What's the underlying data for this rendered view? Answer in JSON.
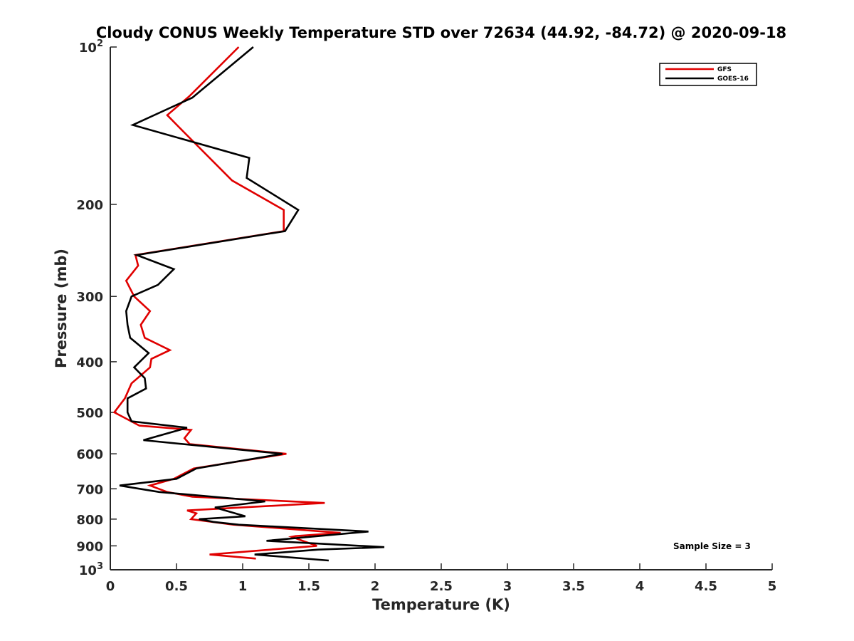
{
  "chart_data": {
    "type": "line",
    "title": "Cloudy CONUS Weekly Temperature STD over 72634 (44.92, -84.72) @ 2020-09-18",
    "xlabel": "Temperature (K)",
    "ylabel": "Pressure (mb)",
    "xlim": [
      0,
      5
    ],
    "ylim": [
      100,
      1000
    ],
    "y_scale": "log",
    "y_reversed": true,
    "x_ticks": [
      "0",
      "0.5",
      "1",
      "1.5",
      "2",
      "2.5",
      "3",
      "3.5",
      "4",
      "4.5",
      "5"
    ],
    "y_ticks": [
      {
        "value": 100,
        "base": "10",
        "exp": "2"
      },
      {
        "value": 200,
        "label": "200"
      },
      {
        "value": 300,
        "label": "300"
      },
      {
        "value": 400,
        "label": "400"
      },
      {
        "value": 500,
        "label": "500"
      },
      {
        "value": 600,
        "label": "600"
      },
      {
        "value": 700,
        "label": "700"
      },
      {
        "value": 800,
        "label": "800"
      },
      {
        "value": 900,
        "label": "900"
      },
      {
        "value": 1000,
        "base": "10",
        "exp": "3"
      }
    ],
    "grid": false,
    "legend": {
      "placement": "top-right",
      "entries": [
        "GFS",
        "GOES-16"
      ]
    },
    "annotation": "Sample Size = 3",
    "series": [
      {
        "name": "GFS",
        "color": "#e00000",
        "points": [
          [
            0.97,
            100
          ],
          [
            0.6,
            124
          ],
          [
            0.43,
            135
          ],
          [
            0.55,
            145
          ],
          [
            0.92,
            180
          ],
          [
            1.31,
            205
          ],
          [
            1.31,
            225
          ],
          [
            0.19,
            250
          ],
          [
            0.21,
            262
          ],
          [
            0.12,
            280
          ],
          [
            0.18,
            300
          ],
          [
            0.3,
            320
          ],
          [
            0.23,
            340
          ],
          [
            0.26,
            360
          ],
          [
            0.45,
            380
          ],
          [
            0.31,
            395
          ],
          [
            0.3,
            410
          ],
          [
            0.16,
            440
          ],
          [
            0.11,
            470
          ],
          [
            0.03,
            500
          ],
          [
            0.22,
            530
          ],
          [
            0.61,
            540
          ],
          [
            0.56,
            560
          ],
          [
            0.6,
            575
          ],
          [
            1.33,
            600
          ],
          [
            0.63,
            640
          ],
          [
            0.48,
            670
          ],
          [
            0.3,
            690
          ],
          [
            0.43,
            710
          ],
          [
            0.62,
            725
          ],
          [
            1.62,
            745
          ],
          [
            0.58,
            770
          ],
          [
            0.65,
            780
          ],
          [
            0.61,
            800
          ],
          [
            0.93,
            820
          ],
          [
            1.74,
            850
          ],
          [
            1.4,
            862
          ],
          [
            1.37,
            865
          ],
          [
            1.56,
            900
          ],
          [
            0.75,
            935
          ],
          [
            1.1,
            952
          ]
        ]
      },
      {
        "name": "GOES-16",
        "color": "#000000",
        "points": [
          [
            1.08,
            100
          ],
          [
            0.62,
            125
          ],
          [
            0.17,
            141
          ],
          [
            1.05,
            163
          ],
          [
            1.03,
            178
          ],
          [
            1.42,
            205
          ],
          [
            1.32,
            225
          ],
          [
            0.2,
            250
          ],
          [
            0.48,
            266
          ],
          [
            0.36,
            285
          ],
          [
            0.16,
            300
          ],
          [
            0.15,
            305
          ],
          [
            0.12,
            320
          ],
          [
            0.13,
            340
          ],
          [
            0.15,
            360
          ],
          [
            0.29,
            385
          ],
          [
            0.18,
            410
          ],
          [
            0.26,
            430
          ],
          [
            0.27,
            450
          ],
          [
            0.13,
            470
          ],
          [
            0.13,
            500
          ],
          [
            0.16,
            520
          ],
          [
            0.58,
            535
          ],
          [
            0.25,
            565
          ],
          [
            1.3,
            600
          ],
          [
            0.65,
            640
          ],
          [
            0.5,
            670
          ],
          [
            0.07,
            690
          ],
          [
            0.37,
            710
          ],
          [
            1.17,
            740
          ],
          [
            0.79,
            760
          ],
          [
            1.02,
            790
          ],
          [
            0.67,
            800
          ],
          [
            0.78,
            810
          ],
          [
            0.97,
            820
          ],
          [
            1.95,
            845
          ],
          [
            1.18,
            880
          ],
          [
            2.07,
            905
          ],
          [
            1.57,
            915
          ],
          [
            1.09,
            935
          ],
          [
            1.65,
            960
          ]
        ]
      }
    ]
  }
}
